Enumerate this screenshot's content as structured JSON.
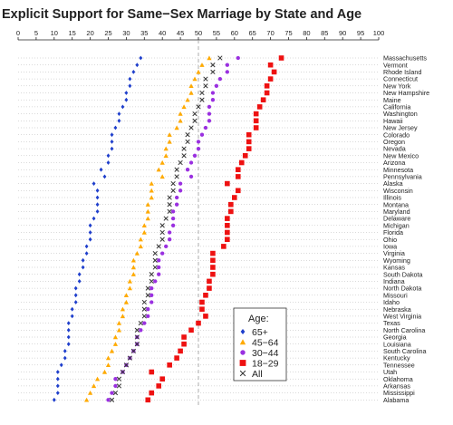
{
  "chart_data": {
    "type": "scatter",
    "title": "Explicit Support for Same−Sex Marriage by State and Age",
    "xlim": [
      0,
      100
    ],
    "x_ticks": [
      "0",
      "5",
      "10",
      "15",
      "20",
      "25",
      "30",
      "35",
      "40",
      "45",
      "50",
      "55",
      "60",
      "65",
      "70",
      "75",
      "80",
      "85",
      "90",
      "95",
      "100"
    ],
    "reference_line": 50,
    "states": [
      "Massachusetts",
      "Vermont",
      "Rhode Island",
      "Connecticut",
      "New York",
      "New Hampshire",
      "Maine",
      "California",
      "Washington",
      "Hawaii",
      "New Jersey",
      "Colorado",
      "Oregon",
      "Nevada",
      "New Mexico",
      "Arizona",
      "Minnesota",
      "Pennsylvania",
      "Alaska",
      "Wisconsin",
      "Illinois",
      "Montana",
      "Maryland",
      "Delaware",
      "Michigan",
      "Florida",
      "Ohio",
      "Iowa",
      "Virginia",
      "Wyoming",
      "Kansas",
      "South Dakota",
      "Indiana",
      "North Dakota",
      "Missouri",
      "Idaho",
      "Nebraska",
      "West Virginia",
      "Texas",
      "North Carolina",
      "Georgia",
      "Louisiana",
      "South Carolina",
      "Kentucky",
      "Tennessee",
      "Utah",
      "Oklahoma",
      "Arkansas",
      "Mississippi",
      "Alabama"
    ],
    "legend": {
      "title": "Age:",
      "position": "bottom-right",
      "entries": [
        {
          "label": "65+",
          "color": "#1f3fcc",
          "shape": "diamond"
        },
        {
          "label": "45−64",
          "color": "#ffaa00",
          "shape": "triangle"
        },
        {
          "label": "30−44",
          "color": "#9a30e0",
          "shape": "circle"
        },
        {
          "label": "18−29",
          "color": "#ee1111",
          "shape": "square"
        },
        {
          "label": "All",
          "color": "#333333",
          "shape": "cross"
        }
      ]
    },
    "series": [
      {
        "name": "65+",
        "values": [
          34,
          33,
          32,
          31,
          31,
          30,
          30,
          29,
          28,
          28,
          27,
          26,
          26,
          26,
          25,
          25,
          23,
          24,
          21,
          22,
          22,
          22,
          22,
          21,
          20,
          20,
          20,
          19,
          19,
          18,
          18,
          17,
          17,
          16,
          16,
          16,
          15,
          15,
          14,
          14,
          14,
          14,
          13,
          13,
          12,
          11,
          11,
          11,
          11,
          10
        ]
      },
      {
        "name": "45−64",
        "values": [
          53,
          51,
          50,
          49,
          48,
          48,
          47,
          46,
          45,
          45,
          44,
          42,
          42,
          41,
          41,
          40,
          39,
          40,
          37,
          37,
          37,
          36,
          36,
          36,
          35,
          35,
          34,
          34,
          33,
          32,
          32,
          32,
          31,
          31,
          30,
          30,
          29,
          29,
          28,
          28,
          27,
          27,
          26,
          25,
          25,
          24,
          22,
          21,
          20,
          19
        ]
      },
      {
        "name": "30−44",
        "values": [
          61,
          58,
          58,
          56,
          55,
          54,
          54,
          53,
          53,
          53,
          52,
          51,
          50,
          50,
          49,
          48,
          47,
          48,
          45,
          45,
          44,
          44,
          43,
          43,
          43,
          42,
          42,
          41,
          40,
          39,
          39,
          39,
          38,
          37,
          37,
          37,
          36,
          36,
          35,
          34,
          33,
          33,
          32,
          31,
          30,
          29,
          27,
          27,
          26,
          25
        ]
      },
      {
        "name": "18−29",
        "values": [
          73,
          70,
          71,
          70,
          69,
          69,
          68,
          67,
          66,
          66,
          66,
          64,
          64,
          64,
          63,
          62,
          61,
          61,
          58,
          61,
          60,
          59,
          59,
          58,
          58,
          58,
          58,
          57,
          54,
          54,
          54,
          54,
          53,
          53,
          52,
          51,
          51,
          52,
          50,
          48,
          46,
          46,
          45,
          44,
          42,
          37,
          40,
          39,
          37,
          36
        ]
      },
      {
        "name": "All",
        "values": [
          56,
          54,
          54,
          52,
          52,
          51,
          51,
          50,
          49,
          49,
          48,
          47,
          47,
          46,
          46,
          45,
          44,
          44,
          43,
          43,
          42,
          42,
          42,
          41,
          40,
          40,
          40,
          39,
          38,
          38,
          38,
          37,
          37,
          36,
          36,
          35,
          35,
          35,
          34,
          33,
          33,
          33,
          32,
          31,
          30,
          29,
          28,
          28,
          27,
          26
        ]
      }
    ]
  }
}
